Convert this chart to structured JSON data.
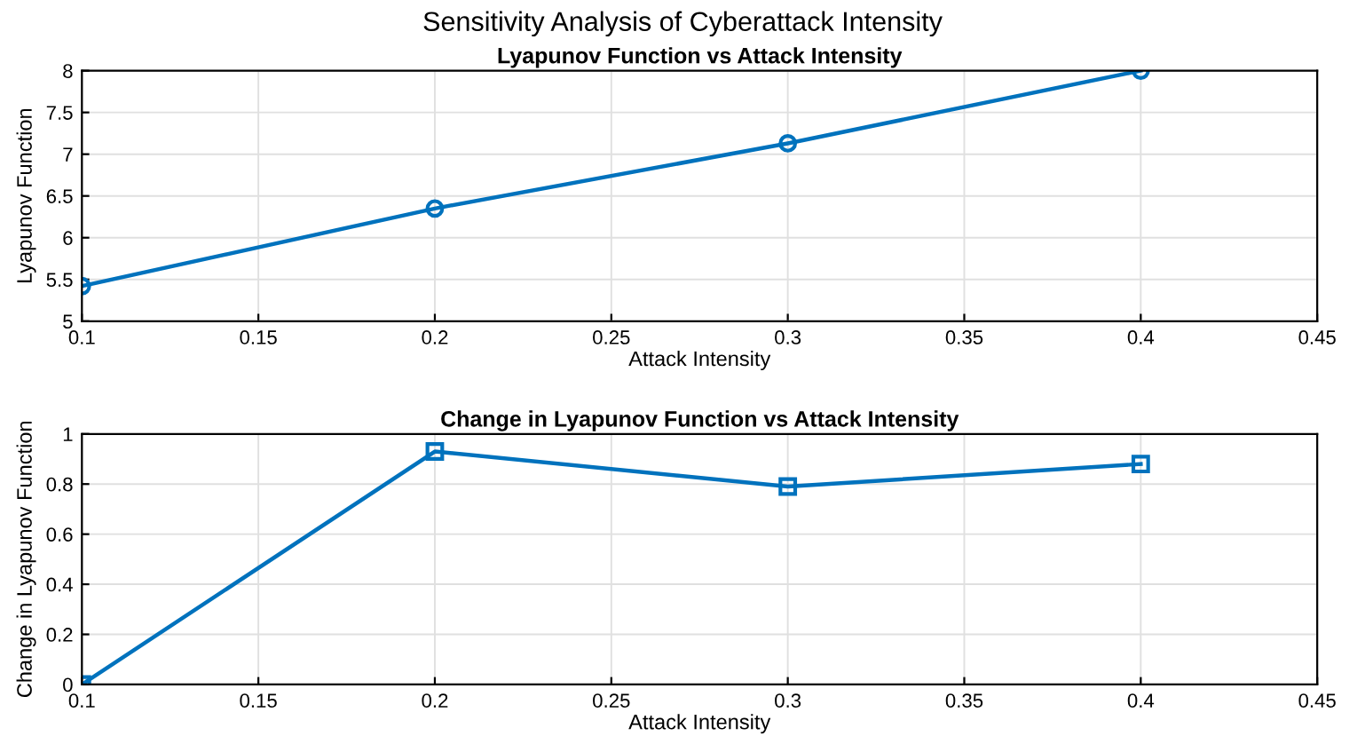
{
  "chart_data": [
    {
      "type": "line",
      "title": "Lyapunov Function vs Attack Intensity",
      "xlabel": "Attack Intensity",
      "ylabel": "Lyapunov Function",
      "x": [
        0.1,
        0.2,
        0.3,
        0.4
      ],
      "series": [
        {
          "color": "#0072bd",
          "values": [
            5.42,
            6.35,
            7.13,
            8.0
          ]
        }
      ],
      "annotations": [
        "Sensitivity Analysis of Cyberattack Intensity"
      ],
      "xlim": [
        0.1,
        0.45
      ],
      "xticks": [
        0.1,
        0.15,
        0.2,
        0.25,
        0.3,
        0.35,
        0.4,
        0.45
      ],
      "ylim": [
        5,
        8
      ],
      "yticks": [
        5,
        5.5,
        6,
        6.5,
        7,
        7.5,
        8
      ],
      "grid": true,
      "marker": "circle",
      "line_style": "solid"
    },
    {
      "type": "line",
      "title": "Change in Lyapunov Function vs Attack Intensity",
      "xlabel": "Attack Intensity",
      "ylabel": "Change in Lyapunov Function",
      "x": [
        0.1,
        0.2,
        0.3,
        0.4
      ],
      "series": [
        {
          "color": "#0072bd",
          "values": [
            0,
            0.93,
            0.79,
            0.88
          ]
        }
      ],
      "xlim": [
        0.1,
        0.45
      ],
      "xticks": [
        0.1,
        0.15,
        0.2,
        0.25,
        0.3,
        0.35,
        0.4,
        0.45
      ],
      "ylim": [
        0,
        1
      ],
      "yticks": [
        0,
        0.2,
        0.4,
        0.6,
        0.8,
        1
      ],
      "grid": true,
      "marker": "square",
      "line_style": "solid"
    }
  ]
}
